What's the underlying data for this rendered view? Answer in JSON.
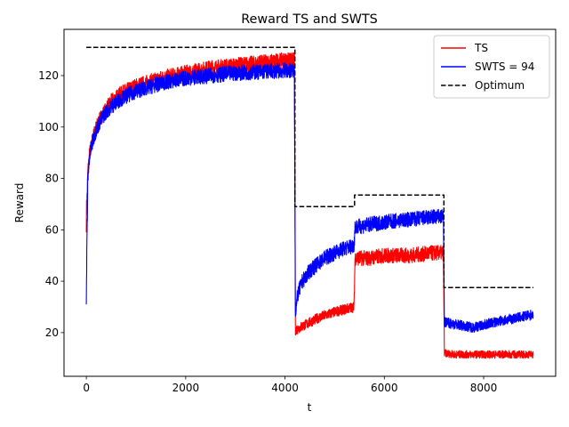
{
  "chart_data": {
    "type": "line",
    "title": "Reward TS and SWTS",
    "xlabel": "t",
    "ylabel": "Reward",
    "xlim": [
      -450,
      9450
    ],
    "ylim": [
      3,
      138
    ],
    "xticks": [
      0,
      2000,
      4000,
      6000,
      8000
    ],
    "yticks": [
      20,
      40,
      60,
      80,
      100,
      120
    ],
    "grid": false,
    "legend_position": "top-right",
    "series": [
      {
        "name": "TS",
        "color": "#ff0000",
        "style": "solid",
        "x": [
          0,
          30,
          60,
          100,
          150,
          200,
          300,
          400,
          500,
          700,
          1000,
          1500,
          2000,
          2500,
          3000,
          3500,
          4000,
          4190,
          4210,
          4400,
          4700,
          5000,
          5390,
          5410,
          5700,
          6000,
          6500,
          7000,
          7190,
          7210,
          7400,
          7800,
          8200,
          8600,
          9000
        ],
        "y": [
          65,
          82,
          89,
          93,
          97,
          100,
          104,
          107,
          110,
          113,
          116,
          119,
          121,
          123,
          124,
          125,
          126,
          126,
          21,
          23,
          26,
          28,
          30,
          49,
          49,
          50,
          50,
          51,
          51,
          12,
          11.5,
          11.5,
          11.5,
          11.5,
          11.5
        ],
        "noise": [
          6,
          4,
          3,
          3,
          3,
          3,
          3,
          3,
          3,
          3,
          3,
          3,
          3,
          3,
          3,
          3,
          3,
          3,
          2,
          2,
          2,
          2,
          2,
          3,
          3,
          3,
          3,
          3,
          3,
          1.5,
          1.5,
          1.5,
          1.5,
          1.5,
          1.5
        ]
      },
      {
        "name": "SWTS = 94",
        "color": "#0000ff",
        "style": "solid",
        "x": [
          0,
          30,
          60,
          100,
          150,
          200,
          300,
          400,
          500,
          700,
          1000,
          1500,
          2000,
          2500,
          3000,
          3500,
          4000,
          4190,
          4210,
          4260,
          4350,
          4500,
          4800,
          5100,
          5390,
          5410,
          5700,
          6000,
          6500,
          7000,
          7190,
          7210,
          7500,
          7800,
          8200,
          8600,
          9000
        ],
        "y": [
          36,
          80,
          88,
          92,
          96,
          99,
          103,
          106,
          108,
          111,
          114,
          117,
          119,
          120,
          121,
          121.5,
          122,
          122,
          28,
          35,
          40,
          44,
          49,
          52,
          54,
          61,
          62,
          63,
          64,
          65,
          65,
          24,
          23,
          22,
          24,
          25.5,
          27
        ],
        "noise": [
          6,
          4,
          3,
          3,
          3,
          3,
          3,
          3,
          3,
          3,
          3,
          3,
          3,
          3,
          3,
          3,
          3,
          3,
          3,
          3,
          3,
          3,
          3,
          3,
          3,
          3,
          3,
          3,
          3,
          3,
          3,
          2,
          2,
          2,
          2,
          2,
          2
        ]
      },
      {
        "name": "Optimum",
        "color": "#000000",
        "style": "dashed",
        "x": [
          0,
          4200,
          4200,
          5400,
          5400,
          7200,
          7200,
          9000
        ],
        "y": [
          131,
          131,
          69,
          69,
          73.5,
          73.5,
          37.5,
          37.5
        ]
      }
    ]
  }
}
